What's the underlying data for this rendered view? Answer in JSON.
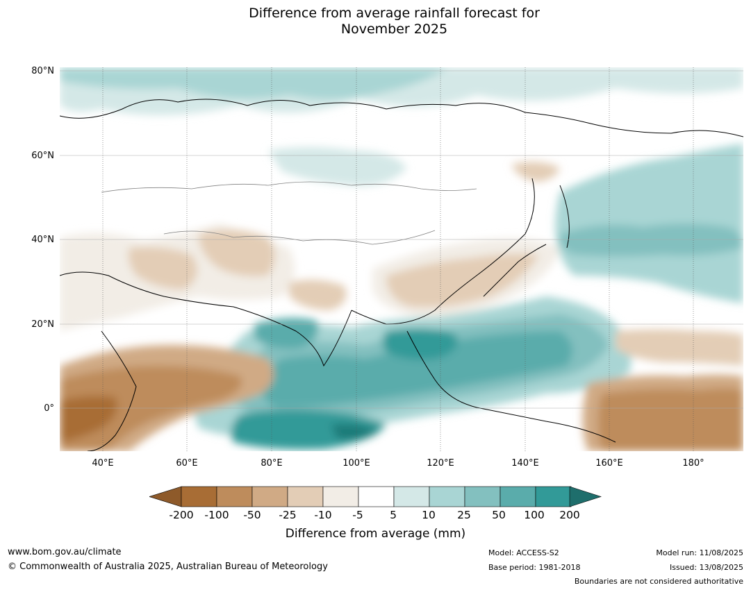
{
  "title": {
    "line1": "Difference from average rainfall forecast for",
    "line2": "November 2025"
  },
  "map": {
    "latitude_labels": [
      "80°N",
      "60°N",
      "40°N",
      "20°N",
      "0°"
    ],
    "longitude_labels": [
      "40°E",
      "60°E",
      "80°E",
      "100°E",
      "120°E",
      "140°E",
      "160°E",
      "180°"
    ],
    "extent": {
      "lon_min": 30,
      "lon_max": 191,
      "lat_min": -10,
      "lat_max": 81
    }
  },
  "colorbar": {
    "title": "Difference from average (mm)",
    "tick_labels": [
      "-200",
      "-100",
      "-50",
      "-25",
      "-10",
      "-5",
      "5",
      "10",
      "25",
      "50",
      "100",
      "200"
    ],
    "colors": [
      "#a86d35",
      "#be8c5c",
      "#d0aa85",
      "#e3cdb6",
      "#f2ede6",
      "#ffffff",
      "#d4e8e7",
      "#a9d5d4",
      "#83c0bf",
      "#5aacab",
      "#329a98",
      "#1f7a78"
    ],
    "under_color": "#8e5a2a",
    "over_color": "#1e6e6c"
  },
  "footer": {
    "website": "www.bom.gov.au/climate",
    "copyright": "© Commonwealth of Australia 2025, Australian Bureau of Meteorology",
    "model": "Model: ACCESS-S2",
    "base_period": "Base period: 1981-2018",
    "model_run": "Model run: 11/08/2025",
    "issued": "Issued: 13/08/2025",
    "disclaimer": "Boundaries are not considered authoritative"
  }
}
